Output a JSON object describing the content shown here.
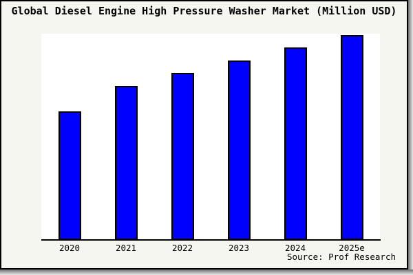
{
  "title": "Global Diesel Engine High Pressure Washer Market (Million USD)",
  "source": "Source: Prof Research",
  "colors": {
    "frame_background": "#f6f6f0",
    "plot_background": "#ffffff",
    "bar_fill": "#0000ff",
    "bar_border": "#000000",
    "axis": "#000000",
    "frame_border": "#000000",
    "shadow": "#6e6e6e",
    "text": "#000000"
  },
  "chart_data": {
    "type": "bar",
    "title": "Global Diesel Engine High Pressure Washer Market (Million USD)",
    "categories": [
      "2020",
      "2021",
      "2022",
      "2023",
      "2024",
      "2025e"
    ],
    "values": [
      62.8,
      75.2,
      81.5,
      87.6,
      94.0,
      100.0
    ],
    "value_note": "No y-axis, gridlines or data labels are shown; values are relative bar heights indexed to the tallest bar (2025e) = 100",
    "xlabel": "",
    "ylabel": "",
    "ylim": [
      0,
      100.7
    ],
    "grid": false,
    "legend": false,
    "y_axis_visible": false,
    "bar_color": "#0000ff"
  }
}
